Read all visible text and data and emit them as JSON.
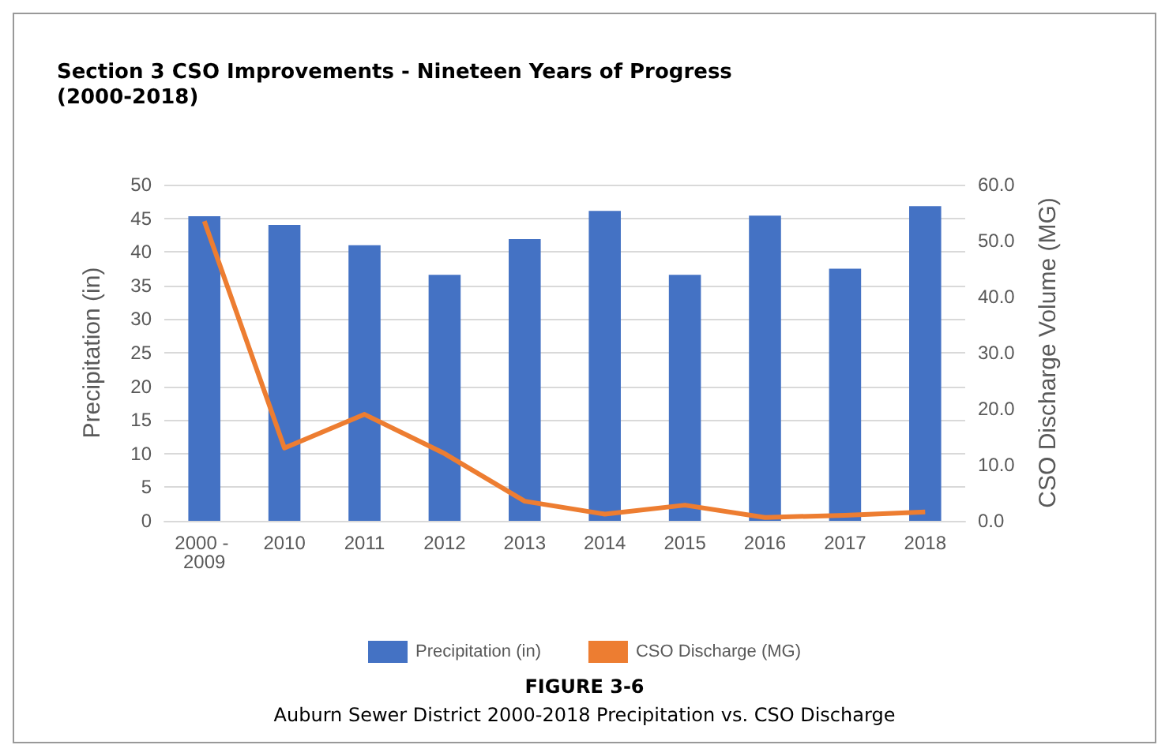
{
  "chart_data": {
    "type": "bar",
    "title": "Section 3 CSO Improvements - Nineteen Years of Progress (2000-2018)",
    "ylabel": "Precipitation (in)",
    "y2label": "CSO Discharge Volume (MG)",
    "categories": [
      "2000 - 2009",
      "2010",
      "2011",
      "2012",
      "2013",
      "2014",
      "2015",
      "2016",
      "2017",
      "2018"
    ],
    "series": [
      {
        "name": "Precipitation (in)",
        "color": "#4472c4",
        "values": [
          45.3,
          44,
          41,
          36.6,
          41.9,
          46.1,
          36.6,
          45.4,
          37.5,
          46.8
        ]
      },
      {
        "name": "CSO Discharge (MG)",
        "type": "line",
        "axis": "y2",
        "color": "#ed7d31",
        "values": [
          53.5,
          13,
          19,
          12,
          3.5,
          1.2,
          2.8,
          0.6,
          1.0,
          1.6
        ]
      }
    ],
    "ylim": [
      0,
      50
    ],
    "yticks": [
      0,
      5,
      10,
      15,
      20,
      25,
      30,
      35,
      40,
      45,
      50
    ],
    "y2lim": [
      0,
      60
    ],
    "y2ticks": [
      {
        "value": 0,
        "label": "0.0"
      },
      {
        "value": 10,
        "label": "10.0"
      },
      {
        "value": 20,
        "label": "20.0"
      },
      {
        "value": 30,
        "label": "30.0"
      },
      {
        "value": 40,
        "label": "40.0"
      },
      {
        "value": 50,
        "label": "50.0"
      },
      {
        "value": 60,
        "label": "60.0"
      }
    ],
    "grid": "y",
    "legend": "bottom",
    "marker": "none",
    "line_style": "solid",
    "annotations": [
      "FIGURE 3-6",
      "Auburn Sewer District 2000-2018 Precipitation vs. CSO Discharge"
    ]
  }
}
